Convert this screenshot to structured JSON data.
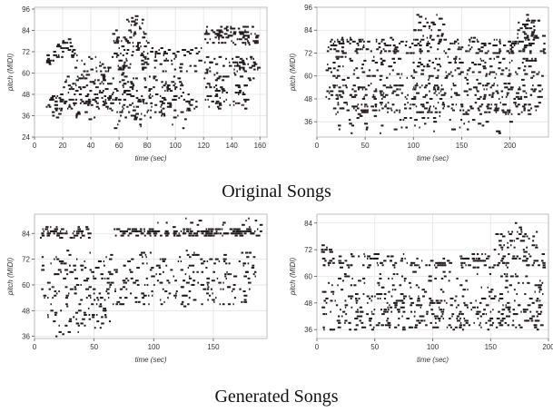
{
  "captions": {
    "top": "Original Songs",
    "bottom": "Generated Songs"
  },
  "colors": {
    "note": "#231a1c",
    "grid": "#e4e4e4",
    "frame": "#b0b0b0"
  },
  "chart_data": [
    {
      "type": "scatter",
      "title": "",
      "xlabel": "time (sec)",
      "ylabel": "pitch (MIDI)",
      "xlim": [
        0,
        165
      ],
      "ylim": [
        24,
        97
      ],
      "xticks": [
        0,
        20,
        40,
        60,
        80,
        100,
        120,
        140,
        160
      ],
      "yticks": [
        24,
        36,
        48,
        60,
        72,
        84,
        96
      ],
      "grid": true,
      "seed": 11,
      "segments": [
        {
          "x0": 8,
          "x1": 15,
          "lo": 64,
          "hi": 72,
          "n": 16
        },
        {
          "x0": 8,
          "x1": 115,
          "lo": 40,
          "hi": 48,
          "n": 140
        },
        {
          "x0": 10,
          "x1": 110,
          "lo": 33,
          "hi": 40,
          "n": 60
        },
        {
          "x0": 15,
          "x1": 28,
          "lo": 68,
          "hi": 79,
          "n": 30
        },
        {
          "x0": 20,
          "x1": 105,
          "lo": 48,
          "hi": 58,
          "n": 110
        },
        {
          "x0": 28,
          "x1": 65,
          "lo": 56,
          "hi": 70,
          "n": 50
        },
        {
          "x0": 55,
          "x1": 80,
          "lo": 63,
          "hi": 84,
          "n": 60
        },
        {
          "x0": 65,
          "x1": 78,
          "lo": 82,
          "hi": 92,
          "n": 22
        },
        {
          "x0": 75,
          "x1": 118,
          "lo": 60,
          "hi": 74,
          "n": 60
        },
        {
          "x0": 120,
          "x1": 158,
          "lo": 76,
          "hi": 86,
          "n": 100
        },
        {
          "x0": 120,
          "x1": 158,
          "lo": 56,
          "hi": 70,
          "n": 80
        },
        {
          "x0": 120,
          "x1": 150,
          "lo": 40,
          "hi": 54,
          "n": 60
        },
        {
          "x0": 40,
          "x1": 110,
          "lo": 28,
          "hi": 34,
          "n": 8
        }
      ]
    },
    {
      "type": "scatter",
      "title": "",
      "xlabel": "time (sec)",
      "ylabel": "pitch (MIDI)",
      "xlim": [
        0,
        240
      ],
      "ylim": [
        28,
        96
      ],
      "xticks": [
        0,
        50,
        100,
        150,
        200
      ],
      "yticks": [
        36,
        48,
        60,
        72,
        84,
        96
      ],
      "grid": true,
      "seed": 23,
      "segments": [
        {
          "x0": 8,
          "x1": 235,
          "lo": 72,
          "hi": 80,
          "n": 220
        },
        {
          "x0": 8,
          "x1": 235,
          "lo": 58,
          "hi": 70,
          "n": 180
        },
        {
          "x0": 8,
          "x1": 235,
          "lo": 48,
          "hi": 56,
          "n": 200
        },
        {
          "x0": 15,
          "x1": 230,
          "lo": 40,
          "hi": 46,
          "n": 160
        },
        {
          "x0": 20,
          "x1": 200,
          "lo": 30,
          "hi": 40,
          "n": 50
        },
        {
          "x0": 100,
          "x1": 130,
          "lo": 80,
          "hi": 92,
          "n": 30
        },
        {
          "x0": 205,
          "x1": 235,
          "lo": 80,
          "hi": 92,
          "n": 40
        }
      ]
    },
    {
      "type": "scatter",
      "title": "",
      "xlabel": "time (sec)",
      "ylabel": "pitch (MIDI)",
      "xlim": [
        0,
        195
      ],
      "ylim": [
        35,
        93
      ],
      "xticks": [
        0,
        50,
        100,
        150
      ],
      "yticks": [
        36,
        48,
        60,
        72,
        84
      ],
      "grid": true,
      "seed": 37,
      "segments": [
        {
          "x0": 3,
          "x1": 45,
          "lo": 82,
          "hi": 87,
          "n": 60
        },
        {
          "x0": 65,
          "x1": 190,
          "lo": 83,
          "hi": 86,
          "n": 180
        },
        {
          "x0": 5,
          "x1": 185,
          "lo": 60,
          "hi": 76,
          "n": 200
        },
        {
          "x0": 5,
          "x1": 180,
          "lo": 50,
          "hi": 60,
          "n": 140
        },
        {
          "x0": 10,
          "x1": 70,
          "lo": 40,
          "hi": 50,
          "n": 40
        },
        {
          "x0": 15,
          "x1": 45,
          "lo": 36,
          "hi": 42,
          "n": 10
        },
        {
          "x0": 100,
          "x1": 190,
          "lo": 86,
          "hi": 91,
          "n": 15
        }
      ]
    },
    {
      "type": "scatter",
      "title": "",
      "xlabel": "time (sec)",
      "ylabel": "pitch (MIDI)",
      "xlim": [
        0,
        200
      ],
      "ylim": [
        32,
        88
      ],
      "xticks": [
        0,
        50,
        100,
        150,
        200
      ],
      "yticks": [
        36,
        48,
        60,
        72,
        84
      ],
      "grid": true,
      "seed": 53,
      "segments": [
        {
          "x0": 3,
          "x1": 195,
          "lo": 64,
          "hi": 70,
          "n": 160
        },
        {
          "x0": 3,
          "x1": 195,
          "lo": 42,
          "hi": 52,
          "n": 220
        },
        {
          "x0": 3,
          "x1": 195,
          "lo": 36,
          "hi": 42,
          "n": 140
        },
        {
          "x0": 3,
          "x1": 195,
          "lo": 52,
          "hi": 62,
          "n": 100
        },
        {
          "x0": 150,
          "x1": 190,
          "lo": 70,
          "hi": 80,
          "n": 40
        },
        {
          "x0": 170,
          "x1": 178,
          "lo": 80,
          "hi": 86,
          "n": 6
        },
        {
          "x0": 3,
          "x1": 15,
          "lo": 68,
          "hi": 74,
          "n": 12
        }
      ]
    }
  ]
}
